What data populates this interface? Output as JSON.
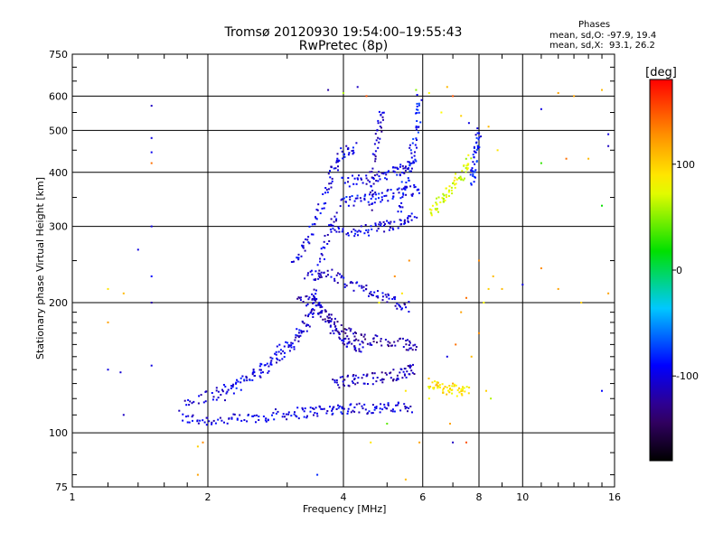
{
  "header": {
    "title": "Tromsø 20120930 19:54:00–19:55:43",
    "subtitle": "RwPretec (8p)"
  },
  "phases_box": {
    "title": "Phases",
    "line_o": "mean, sd,O: -97.9, 19.4",
    "line_x": "mean, sd,X:  93.1, 26.2"
  },
  "colorbar": {
    "label": "[deg]",
    "range": [
      -180,
      180
    ],
    "ticks": [
      {
        "value": 100,
        "label": "100"
      },
      {
        "value": 0,
        "label": "0"
      },
      {
        "value": -100,
        "label": "-100"
      }
    ]
  },
  "chart_data": {
    "type": "scatter",
    "xlabel": "Frequency [MHz]",
    "ylabel": "Stationary phase Virtual Height [km]",
    "x_scale": "log",
    "y_scale": "log",
    "xlim": [
      1,
      16
    ],
    "ylim": [
      75,
      750
    ],
    "grid": true,
    "x_ticks": [
      {
        "value": 1,
        "label": "1"
      },
      {
        "value": 2,
        "label": "2"
      },
      {
        "value": 4,
        "label": "4"
      },
      {
        "value": 6,
        "label": "6"
      },
      {
        "value": 8,
        "label": "8"
      },
      {
        "value": 10,
        "label": "10"
      },
      {
        "value": 16,
        "label": "16"
      }
    ],
    "y_ticks": [
      {
        "value": 75,
        "label": "75"
      },
      {
        "value": 100,
        "label": "100"
      },
      {
        "value": 200,
        "label": "200"
      },
      {
        "value": 300,
        "label": "300"
      },
      {
        "value": 400,
        "label": "400"
      },
      {
        "value": 500,
        "label": "500"
      },
      {
        "value": 600,
        "label": "600"
      },
      {
        "value": 750,
        "label": "750"
      }
    ],
    "traces": [
      {
        "x": [
          1.75,
          1.95,
          2.2,
          2.5,
          2.8,
          3.1,
          3.4,
          3.7,
          4.0,
          4.4,
          4.8,
          5.2,
          5.7
        ],
        "y": [
          108,
          107,
          107,
          108,
          110,
          111,
          112,
          113,
          114,
          114,
          114,
          114,
          115
        ],
        "phase": -100
      },
      {
        "x": [
          1.75,
          2.0,
          2.3,
          2.6,
          2.9,
          3.2,
          3.4,
          3.55,
          3.7,
          3.9
        ],
        "y": [
          115,
          122,
          128,
          138,
          150,
          165,
          190,
          240,
          290,
          320
        ],
        "phase": -105
      },
      {
        "x": [
          2.1,
          2.4,
          2.7,
          3.0,
          3.3,
          3.6
        ],
        "y": [
          120,
          132,
          145,
          160,
          180,
          200
        ],
        "phase": -95
      },
      {
        "x": [
          3.1,
          3.3,
          3.5,
          3.7,
          3.85,
          4.0,
          4.3
        ],
        "y": [
          245,
          270,
          320,
          370,
          420,
          445,
          455
        ],
        "phase": -100
      },
      {
        "x": [
          3.2,
          3.4,
          3.6,
          3.8,
          4.0,
          4.2,
          4.4
        ],
        "y": [
          200,
          205,
          190,
          175,
          165,
          160,
          158
        ],
        "phase": -110
      },
      {
        "x": [
          3.5,
          3.8,
          4.1,
          4.5,
          5.0,
          5.5,
          5.8
        ],
        "y": [
          190,
          180,
          170,
          165,
          162,
          160,
          158
        ],
        "phase": -120
      },
      {
        "x": [
          3.3,
          3.6,
          4.0,
          4.4,
          4.8,
          5.2,
          5.6
        ],
        "y": [
          230,
          235,
          225,
          215,
          210,
          200,
          195
        ],
        "phase": -105
      },
      {
        "x": [
          3.8,
          4.1,
          4.4,
          4.8,
          5.2,
          5.5,
          5.8
        ],
        "y": [
          130,
          132,
          133,
          134,
          136,
          138,
          140
        ],
        "phase": -115
      },
      {
        "x": [
          3.8,
          4.2,
          4.6,
          5.0,
          5.4,
          5.8
        ],
        "y": [
          290,
          292,
          295,
          300,
          305,
          315
        ],
        "phase": -100
      },
      {
        "x": [
          3.9,
          4.3,
          4.7,
          5.1,
          5.5,
          5.9
        ],
        "y": [
          340,
          345,
          350,
          355,
          360,
          365
        ],
        "phase": -95
      },
      {
        "x": [
          4.0,
          4.4,
          4.8,
          5.2,
          5.5,
          5.8
        ],
        "y": [
          380,
          385,
          395,
          400,
          410,
          430
        ],
        "phase": -100
      },
      {
        "x": [
          5.3,
          5.5,
          5.7,
          5.85,
          5.9
        ],
        "y": [
          320,
          380,
          450,
          520,
          600
        ],
        "phase": -90
      },
      {
        "x": [
          4.6,
          4.7,
          4.8,
          4.9
        ],
        "y": [
          330,
          420,
          500,
          560
        ],
        "phase": -110
      },
      {
        "x": [
          6.3,
          6.5,
          6.8,
          7.1,
          7.4,
          7.6
        ],
        "y": [
          320,
          340,
          360,
          380,
          400,
          430
        ],
        "phase": 70
      },
      {
        "x": [
          6.2,
          6.5,
          6.8,
          7.2,
          7.6
        ],
        "y": [
          130,
          128,
          126,
          125,
          124
        ],
        "phase": 90
      },
      {
        "x": [
          7.7,
          7.8,
          7.9,
          8.0
        ],
        "y": [
          380,
          420,
          460,
          500
        ],
        "phase": -90
      }
    ],
    "points": [
      [
        1.5,
        570,
        -110
      ],
      [
        1.5,
        480,
        -100
      ],
      [
        1.5,
        445,
        -95
      ],
      [
        1.5,
        420,
        140
      ],
      [
        1.5,
        300,
        -100
      ],
      [
        1.5,
        230,
        -90
      ],
      [
        1.5,
        200,
        -120
      ],
      [
        1.2,
        215,
        90
      ],
      [
        1.2,
        180,
        120
      ],
      [
        1.3,
        210,
        110
      ],
      [
        1.4,
        265,
        -100
      ],
      [
        1.2,
        140,
        -100
      ],
      [
        1.28,
        138,
        -105
      ],
      [
        1.3,
        110,
        -110
      ],
      [
        1.5,
        143,
        -100
      ],
      [
        1.9,
        93,
        100
      ],
      [
        1.95,
        95,
        130
      ],
      [
        1.9,
        80,
        120
      ],
      [
        4.5,
        600,
        150
      ],
      [
        4.3,
        630,
        -110
      ],
      [
        3.7,
        620,
        -120
      ],
      [
        4.0,
        610,
        60
      ],
      [
        5.8,
        620,
        50
      ],
      [
        6.2,
        610,
        80
      ],
      [
        6.8,
        630,
        110
      ],
      [
        7.0,
        600,
        150
      ],
      [
        6.6,
        550,
        80
      ],
      [
        7.3,
        540,
        100
      ],
      [
        7.6,
        520,
        -100
      ],
      [
        8.4,
        510,
        110
      ],
      [
        8.8,
        450,
        90
      ],
      [
        8.0,
        250,
        130
      ],
      [
        8.6,
        230,
        110
      ],
      [
        9.0,
        215,
        110
      ],
      [
        8.4,
        215,
        100
      ],
      [
        8.2,
        200,
        80
      ],
      [
        7.5,
        205,
        140
      ],
      [
        7.3,
        190,
        120
      ],
      [
        7.1,
        160,
        140
      ],
      [
        6.8,
        150,
        -100
      ],
      [
        7.7,
        150,
        110
      ],
      [
        8.0,
        170,
        130
      ],
      [
        7.0,
        130,
        120
      ],
      [
        8.3,
        125,
        100
      ],
      [
        8.5,
        120,
        60
      ],
      [
        6.9,
        105,
        120
      ],
      [
        7.0,
        95,
        -110
      ],
      [
        7.5,
        95,
        150
      ],
      [
        5.9,
        95,
        120
      ],
      [
        6.2,
        120,
        80
      ],
      [
        5.5,
        125,
        90
      ],
      [
        5.2,
        230,
        130
      ],
      [
        5.4,
        210,
        90
      ],
      [
        4.8,
        200,
        80
      ],
      [
        5.6,
        250,
        130
      ],
      [
        11.0,
        560,
        -100
      ],
      [
        12.0,
        610,
        120
      ],
      [
        13.0,
        600,
        120
      ],
      [
        15.0,
        620,
        110
      ],
      [
        15.5,
        490,
        -100
      ],
      [
        15.5,
        460,
        -110
      ],
      [
        14.0,
        430,
        110
      ],
      [
        12.5,
        430,
        140
      ],
      [
        11.0,
        420,
        30
      ],
      [
        15.0,
        335,
        20
      ],
      [
        11.0,
        240,
        130
      ],
      [
        10.0,
        220,
        -100
      ],
      [
        12.0,
        215,
        120
      ],
      [
        13.5,
        200,
        100
      ],
      [
        15.5,
        210,
        120
      ],
      [
        15.0,
        125,
        -90
      ],
      [
        3.5,
        80,
        -80
      ],
      [
        5.5,
        78,
        110
      ],
      [
        4.6,
        95,
        90
      ],
      [
        5.0,
        105,
        40
      ]
    ]
  }
}
